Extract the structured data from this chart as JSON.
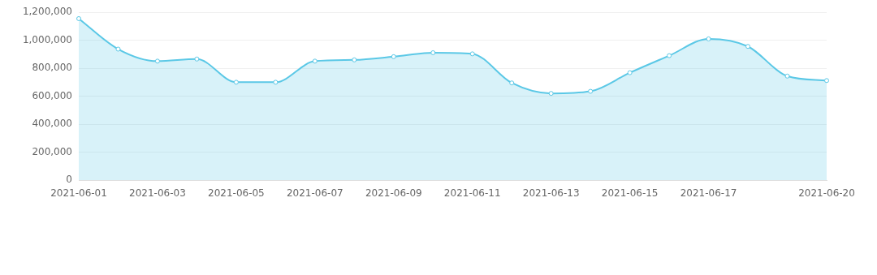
{
  "chart_data": {
    "type": "area",
    "categories": [
      "2021-06-01",
      null,
      "2021-06-03",
      null,
      "2021-06-05",
      null,
      "2021-06-07",
      null,
      "2021-06-09",
      null,
      "2021-06-11",
      null,
      "2021-06-13",
      null,
      "2021-06-15",
      null,
      "2021-06-17",
      null,
      null,
      "2021-06-20"
    ],
    "series": [
      {
        "color": "#5bc8e6",
        "values": [
          1155000,
          937000,
          851000,
          866000,
          700000,
          700000,
          851000,
          860000,
          883000,
          911000,
          903000,
          695000,
          620000,
          635000,
          768000,
          890000,
          1010000,
          956000,
          744000,
          712000
        ]
      }
    ],
    "ylim": [
      0,
      1200000
    ],
    "yticks": [
      {
        "value": 0,
        "label": "0"
      },
      {
        "value": 200000,
        "label": "200,000"
      },
      {
        "value": 400000,
        "label": "400,000"
      },
      {
        "value": 600000,
        "label": "600,000"
      },
      {
        "value": 800000,
        "label": "800,000"
      },
      {
        "value": 1000000,
        "label": "1,000,000"
      },
      {
        "value": 1200000,
        "label": "1,200,000"
      }
    ],
    "grid": "y",
    "legend": false,
    "marker": "circle"
  }
}
